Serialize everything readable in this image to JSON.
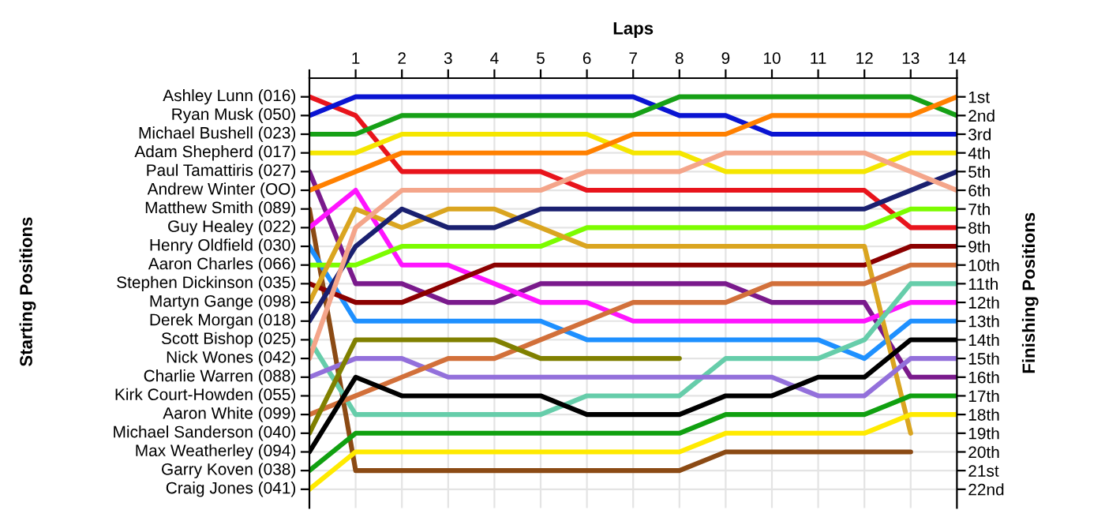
{
  "chart_data": {
    "type": "line",
    "xlabel": "Laps",
    "ylabel": "Finishing Positions",
    "annotations": [
      "Starting Positions",
      "Ashley Lunn (016)",
      "Ryan Musk (050)",
      "Michael Bushell (023)",
      "Adam Shepherd (017)",
      "Paul Tamattiris (027)",
      "Andrew Winter (OO)",
      "Matthew Smith (089)",
      "Guy Healey (022)",
      "Henry Oldfield (030)",
      "Aaron Charles (066)",
      "Stephen Dickinson (035)",
      "Martyn Gange (098)",
      "Derek Morgan (018)",
      "Scott Bishop (025)",
      "Nick Wones (042)",
      "Charlie Warren (088)",
      "Kirk Court-Howden (055)",
      "Aaron White (099)",
      "Michael Sanderson (040)",
      "Max Weatherley (094)",
      "Garry Koven (038)",
      "Craig Jones (041)"
    ],
    "xlim": [
      0,
      14
    ],
    "xticks": [
      {
        "value": 0,
        "label": null
      },
      1,
      2,
      3,
      4,
      5,
      6,
      7,
      8,
      9,
      10,
      11,
      12,
      13,
      14
    ],
    "ylim": [
      23,
      0
    ],
    "yticks": [
      {
        "value": 1,
        "label": "1st"
      },
      {
        "value": 2,
        "label": "2nd"
      },
      {
        "value": 3,
        "label": "3rd"
      },
      {
        "value": 4,
        "label": "4th"
      },
      {
        "value": 5,
        "label": "5th"
      },
      {
        "value": 6,
        "label": "6th"
      },
      {
        "value": 7,
        "label": "7th"
      },
      {
        "value": 8,
        "label": "8th"
      },
      {
        "value": 9,
        "label": "9th"
      },
      {
        "value": 10,
        "label": "10th"
      },
      {
        "value": 11,
        "label": "11th"
      },
      {
        "value": 12,
        "label": "12th"
      },
      {
        "value": 13,
        "label": "13th"
      },
      {
        "value": 14,
        "label": "14th"
      },
      {
        "value": 15,
        "label": "15th"
      },
      {
        "value": 16,
        "label": "16th"
      },
      {
        "value": 17,
        "label": "17th"
      },
      {
        "value": 18,
        "label": "18th"
      },
      {
        "value": 19,
        "label": "19th"
      },
      {
        "value": 20,
        "label": "20th"
      },
      {
        "value": 21,
        "label": "21st"
      },
      {
        "value": 22,
        "label": "22nd"
      }
    ],
    "grid": true,
    "marker": "none",
    "line_style": "solid",
    "series": [
      {
        "color": "#e8141c",
        "x": [
          0,
          1,
          2,
          3,
          4,
          5,
          6,
          7,
          8,
          9,
          10,
          11,
          12,
          13,
          14
        ],
        "values": [
          1,
          2,
          5,
          5,
          5,
          5,
          6,
          6,
          6,
          6,
          6,
          6,
          6,
          8,
          8
        ]
      },
      {
        "color": "#0a14d2",
        "x": [
          0,
          1,
          2,
          3,
          4,
          5,
          6,
          7,
          8,
          9,
          10,
          11,
          12,
          13,
          14
        ],
        "values": [
          2,
          1,
          1,
          1,
          1,
          1,
          1,
          1,
          2,
          2,
          3,
          3,
          3,
          3,
          3
        ]
      },
      {
        "color": "#16a016",
        "x": [
          0,
          1,
          2,
          3,
          4,
          5,
          6,
          7,
          8,
          9,
          10,
          11,
          12,
          13,
          14
        ],
        "values": [
          3,
          3,
          2,
          2,
          2,
          2,
          2,
          2,
          1,
          1,
          1,
          1,
          1,
          1,
          2
        ]
      },
      {
        "color": "#f5e600",
        "x": [
          0,
          1,
          2,
          3,
          4,
          5,
          6,
          7,
          8,
          9,
          10,
          11,
          12,
          13,
          14
        ],
        "values": [
          4,
          4,
          3,
          3,
          3,
          3,
          3,
          4,
          4,
          5,
          5,
          5,
          5,
          4,
          4
        ]
      },
      {
        "color": "#7a1a8c",
        "x": [
          0,
          1,
          2,
          3,
          4,
          5,
          6,
          7,
          8,
          9,
          10,
          11,
          12,
          13,
          14
        ],
        "values": [
          5,
          11,
          11,
          12,
          12,
          11,
          11,
          11,
          11,
          11,
          12,
          12,
          12,
          16,
          16
        ]
      },
      {
        "color": "#ff8000",
        "x": [
          0,
          1,
          2,
          3,
          4,
          5,
          6,
          7,
          8,
          9,
          10,
          11,
          12,
          13,
          14
        ],
        "values": [
          6,
          5,
          4,
          4,
          4,
          4,
          4,
          3,
          3,
          3,
          2,
          2,
          2,
          2,
          1
        ]
      },
      {
        "color": "#8b4a14",
        "x": [
          0,
          1,
          2,
          3,
          4,
          5,
          6,
          7,
          8,
          9,
          10,
          11,
          12,
          13
        ],
        "values": [
          7,
          21,
          21,
          21,
          21,
          21,
          21,
          21,
          21,
          20,
          20,
          20,
          20,
          20
        ]
      },
      {
        "color": "#ff14ff",
        "x": [
          0,
          1,
          2,
          3,
          4,
          5,
          6,
          7,
          8,
          9,
          10,
          11,
          12,
          13,
          14
        ],
        "values": [
          8,
          6,
          10,
          10,
          11,
          12,
          12,
          13,
          13,
          13,
          13,
          13,
          13,
          12,
          12
        ]
      },
      {
        "color": "#1e90ff",
        "x": [
          0,
          1,
          2,
          3,
          4,
          5,
          6,
          7,
          8,
          9,
          10,
          11,
          12,
          13,
          14
        ],
        "values": [
          9,
          13,
          13,
          13,
          13,
          13,
          14,
          14,
          14,
          14,
          14,
          14,
          15,
          13,
          13
        ]
      },
      {
        "color": "#7cfc00",
        "x": [
          0,
          1,
          2,
          3,
          4,
          5,
          6,
          7,
          8,
          9,
          10,
          11,
          12,
          13,
          14
        ],
        "values": [
          10,
          10,
          9,
          9,
          9,
          9,
          8,
          8,
          8,
          8,
          8,
          8,
          8,
          7,
          7
        ]
      },
      {
        "color": "#8b0000",
        "x": [
          0,
          1,
          2,
          3,
          4,
          5,
          6,
          7,
          8,
          9,
          10,
          11,
          12,
          13,
          14
        ],
        "values": [
          11,
          12,
          12,
          11,
          10,
          10,
          10,
          10,
          10,
          10,
          10,
          10,
          10,
          9,
          9
        ]
      },
      {
        "color": "#daa520",
        "x": [
          0,
          1,
          2,
          3,
          4,
          5,
          6,
          7,
          8,
          9,
          10,
          11,
          12,
          13
        ],
        "values": [
          12,
          7,
          8,
          7,
          7,
          8,
          9,
          9,
          9,
          9,
          9,
          9,
          9,
          19
        ]
      },
      {
        "color": "#1a2070",
        "x": [
          0,
          1,
          2,
          3,
          4,
          5,
          6,
          7,
          8,
          9,
          10,
          11,
          12,
          13,
          14
        ],
        "values": [
          13,
          9,
          7,
          8,
          8,
          7,
          7,
          7,
          7,
          7,
          7,
          7,
          7,
          6,
          5
        ]
      },
      {
        "color": "#66cdaa",
        "x": [
          0,
          1,
          2,
          3,
          4,
          5,
          6,
          7,
          8,
          9,
          10,
          11,
          12,
          13,
          14
        ],
        "values": [
          14,
          18,
          18,
          18,
          18,
          18,
          17,
          17,
          17,
          15,
          15,
          15,
          14,
          11,
          11
        ]
      },
      {
        "color": "#f4a58a",
        "x": [
          0,
          1,
          2,
          3,
          4,
          5,
          6,
          7,
          8,
          9,
          10,
          11,
          12,
          13,
          14
        ],
        "values": [
          15,
          8,
          6,
          6,
          6,
          6,
          5,
          5,
          5,
          4,
          4,
          4,
          4,
          5,
          6
        ]
      },
      {
        "color": "#9370db",
        "x": [
          0,
          1,
          2,
          3,
          4,
          5,
          6,
          7,
          8,
          9,
          10,
          11,
          12,
          13,
          14
        ],
        "values": [
          16,
          15,
          15,
          16,
          16,
          16,
          16,
          16,
          16,
          16,
          16,
          17,
          17,
          15,
          15
        ]
      },
      {
        "color": "#d2703a",
        "x": [
          0,
          1,
          2,
          3,
          4,
          5,
          6,
          7,
          8,
          9,
          10,
          11,
          12,
          13,
          14
        ],
        "values": [
          18,
          17,
          16,
          15,
          15,
          14,
          13,
          12,
          12,
          12,
          11,
          11,
          11,
          10,
          10
        ]
      },
      {
        "color": "#808000",
        "x": [
          0,
          1,
          2,
          3,
          4,
          5,
          6,
          7,
          8
        ],
        "values": [
          19,
          14,
          14,
          14,
          14,
          15,
          15,
          15,
          15
        ]
      },
      {
        "color": "#000000",
        "x": [
          0,
          1,
          2,
          3,
          4,
          5,
          6,
          7,
          8,
          9,
          10,
          11,
          12,
          13,
          14
        ],
        "values": [
          20,
          16,
          17,
          17,
          17,
          17,
          18,
          18,
          18,
          17,
          17,
          16,
          16,
          14,
          14
        ]
      },
      {
        "color": "#10a010",
        "x": [
          0,
          1,
          2,
          3,
          4,
          5,
          6,
          7,
          8,
          9,
          10,
          11,
          12,
          13,
          14
        ],
        "values": [
          21,
          19,
          19,
          19,
          19,
          19,
          19,
          19,
          19,
          18,
          18,
          18,
          18,
          17,
          17
        ]
      },
      {
        "color": "#ffea00",
        "x": [
          0,
          1,
          2,
          3,
          4,
          5,
          6,
          7,
          8,
          9,
          10,
          11,
          12,
          13,
          14
        ],
        "values": [
          22,
          20,
          20,
          20,
          20,
          20,
          20,
          20,
          20,
          19,
          19,
          19,
          19,
          18,
          18
        ]
      }
    ]
  }
}
